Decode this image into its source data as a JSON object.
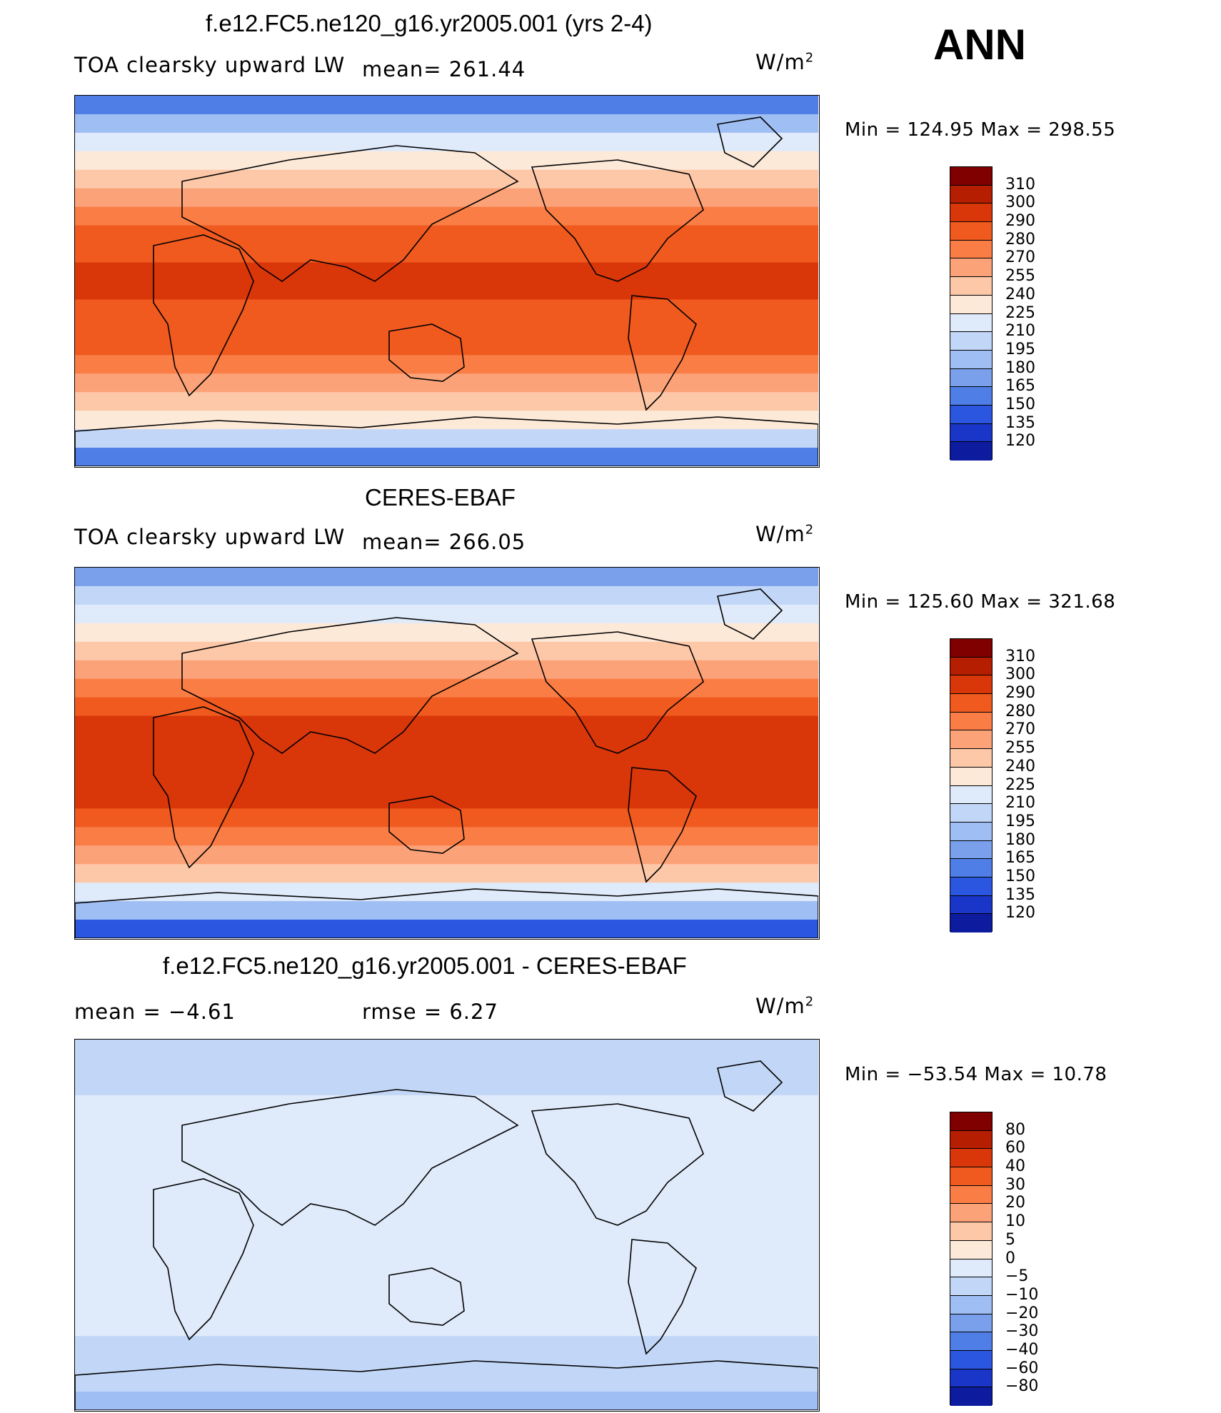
{
  "header": {
    "corner_label": "ANN"
  },
  "panels": [
    {
      "id": "model",
      "title": "f.e12.FC5.ne120_g16.yr2005.001 (yrs 2-4)",
      "left_label": "TOA clearsky upward LW",
      "middle_label": "mean= 261.44",
      "units": "W/m",
      "units_exp": "2",
      "minmax": "Min  =  124.95  Max  =  298.55",
      "colorbar": {
        "labels": [
          "310",
          "300",
          "290",
          "280",
          "270",
          "255",
          "240",
          "225",
          "210",
          "195",
          "180",
          "165",
          "150",
          "135",
          "120"
        ],
        "colors": [
          "#800000",
          "#b51e00",
          "#d9360a",
          "#f05a1e",
          "#fa7d46",
          "#fca278",
          "#fdc8a8",
          "#fde9d8",
          "#dfeafa",
          "#c2d7f7",
          "#9fbef3",
          "#7aa0ec",
          "#4f7fe6",
          "#2b56df",
          "#1a36c8",
          "#0d1b9e"
        ]
      },
      "palette": [
        "#0d1b9e",
        "#1a36c8",
        "#2b56df",
        "#4f7fe6",
        "#7aa0ec",
        "#9fbef3",
        "#c2d7f7",
        "#dfeafa",
        "#fde9d8",
        "#fdc8a8",
        "#fca278",
        "#fa7d46",
        "#f05a1e",
        "#d9360a",
        "#b51e00",
        "#800000"
      ],
      "bands": [
        3,
        5,
        7,
        8,
        9,
        10,
        11,
        12,
        12,
        13,
        13,
        12,
        12,
        12,
        11,
        10,
        9,
        8,
        6,
        3
      ]
    },
    {
      "id": "obs",
      "title": "CERES-EBAF",
      "left_label": "TOA clearsky upward LW",
      "middle_label": "mean= 266.05",
      "units": "W/m",
      "units_exp": "2",
      "minmax": "Min  =  125.60  Max  =  321.68",
      "colorbar": {
        "labels": [
          "310",
          "300",
          "290",
          "280",
          "270",
          "255",
          "240",
          "225",
          "210",
          "195",
          "180",
          "165",
          "150",
          "135",
          "120"
        ],
        "colors": [
          "#800000",
          "#b51e00",
          "#d9360a",
          "#f05a1e",
          "#fa7d46",
          "#fca278",
          "#fdc8a8",
          "#fde9d8",
          "#dfeafa",
          "#c2d7f7",
          "#9fbef3",
          "#7aa0ec",
          "#4f7fe6",
          "#2b56df",
          "#1a36c8",
          "#0d1b9e"
        ]
      },
      "palette": [
        "#0d1b9e",
        "#1a36c8",
        "#2b56df",
        "#4f7fe6",
        "#7aa0ec",
        "#9fbef3",
        "#c2d7f7",
        "#dfeafa",
        "#fde9d8",
        "#fdc8a8",
        "#fca278",
        "#fa7d46",
        "#f05a1e",
        "#d9360a",
        "#b51e00",
        "#800000"
      ],
      "bands": [
        4,
        6,
        7,
        8,
        9,
        10,
        11,
        12,
        13,
        13,
        13,
        13,
        13,
        12,
        11,
        10,
        9,
        7,
        5,
        2
      ]
    },
    {
      "id": "diff",
      "title": "f.e12.FC5.ne120_g16.yr2005.001 - CERES-EBAF",
      "left_label": "mean  =    −4.61",
      "middle_label": "rmse  =     6.27",
      "units": "W/m",
      "units_exp": "2",
      "minmax": "Min  =  −53.54  Max  =    10.78",
      "colorbar": {
        "labels": [
          "80",
          "60",
          "40",
          "30",
          "20",
          "10",
          "5",
          "0",
          "−5",
          "−10",
          "−20",
          "−30",
          "−40",
          "−60",
          "−80"
        ],
        "colors": [
          "#800000",
          "#b51e00",
          "#d9360a",
          "#f05a1e",
          "#fa7d46",
          "#fca278",
          "#fdc8a8",
          "#fde9d8",
          "#dfeafa",
          "#c2d7f7",
          "#9fbef3",
          "#7aa0ec",
          "#4f7fe6",
          "#2b56df",
          "#1a36c8",
          "#0d1b9e"
        ]
      },
      "palette": [
        "#0d1b9e",
        "#1a36c8",
        "#2b56df",
        "#4f7fe6",
        "#7aa0ec",
        "#9fbef3",
        "#c2d7f7",
        "#dfeafa",
        "#fde9d8",
        "#fdc8a8",
        "#fca278",
        "#fa7d46",
        "#f05a1e",
        "#d9360a",
        "#b51e00",
        "#800000"
      ],
      "bands": [
        6,
        6,
        6,
        7,
        7,
        7,
        7,
        7,
        7,
        7,
        7,
        7,
        7,
        7,
        7,
        7,
        6,
        6,
        6,
        5
      ]
    }
  ]
}
